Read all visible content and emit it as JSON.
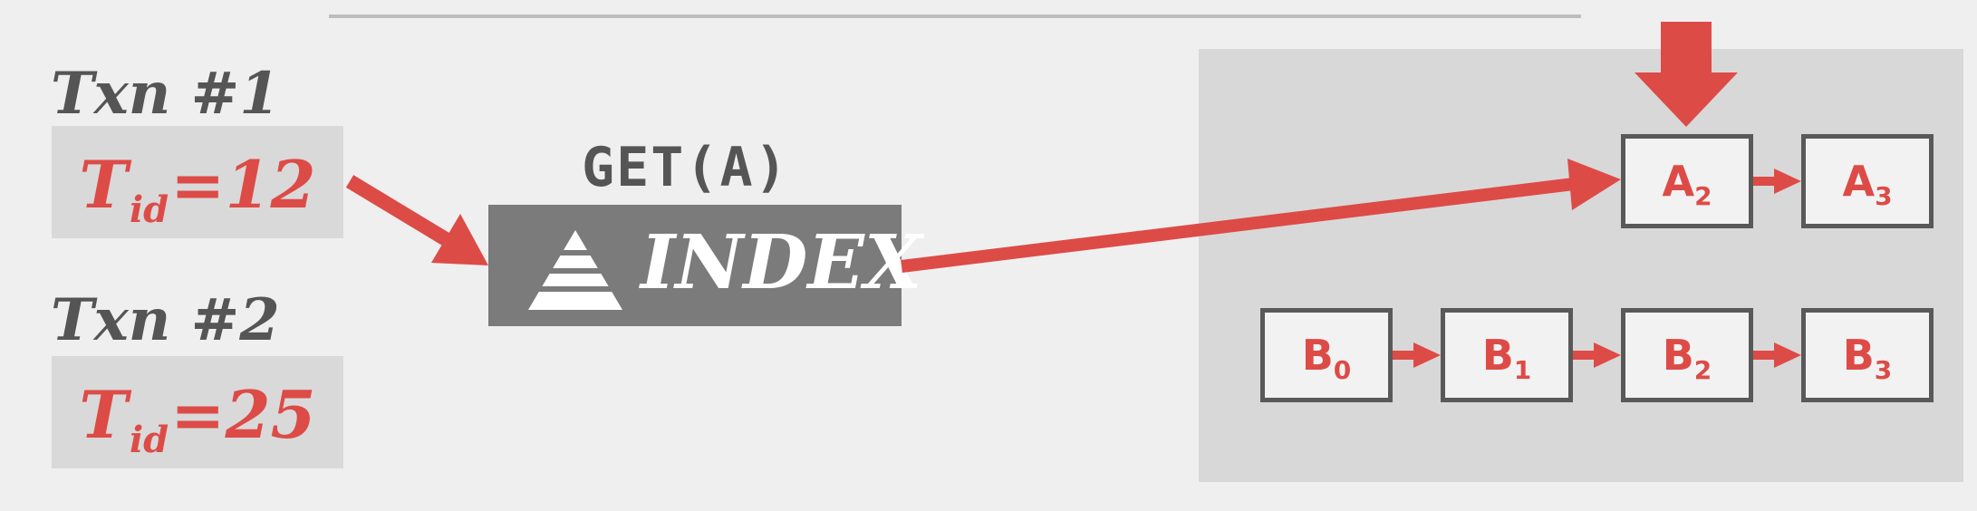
{
  "transactions": [
    {
      "label": "Txn #1",
      "tid_symbol": "T",
      "tid_sub": "id",
      "tid_value": "=12"
    },
    {
      "label": "Txn #2",
      "tid_symbol": "T",
      "tid_sub": "id",
      "tid_value": "=25"
    }
  ],
  "operation": "GET(A)",
  "index": {
    "label": "INDEX"
  },
  "versions": {
    "A": [
      {
        "letter": "A",
        "sub": "2"
      },
      {
        "letter": "A",
        "sub": "3"
      }
    ],
    "B": [
      {
        "letter": "B",
        "sub": "0"
      },
      {
        "letter": "B",
        "sub": "1"
      },
      {
        "letter": "B",
        "sub": "2"
      },
      {
        "letter": "B",
        "sub": "3"
      }
    ]
  },
  "colors": {
    "accent": "#dd4b47",
    "dark": "#555555",
    "index_bg": "#7b7b7b",
    "panel_bg": "#d8d8d8"
  }
}
